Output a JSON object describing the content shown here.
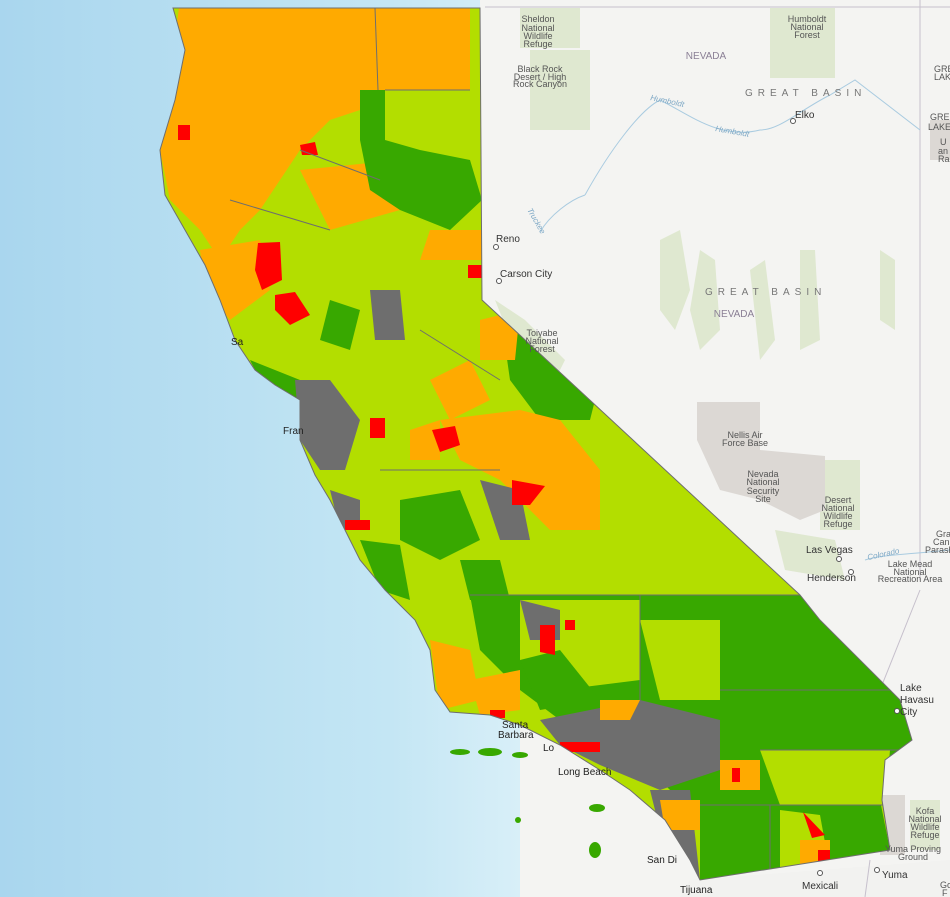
{
  "map": {
    "colors": {
      "ocean": "#b9e0f2",
      "land": "#f4f4f2",
      "light_green": "#b3de00",
      "dark_green": "#38a800",
      "orange": "#ffaa00",
      "red": "#ff0000",
      "gray": "#6e6e6e",
      "protected_green": "#dfe8d0",
      "military_gray": "#dcd8d4"
    },
    "labels": {
      "sheldon": [
        "Sheldon",
        "National",
        "Wildlife",
        "Refuge"
      ],
      "humboldt_forest": [
        "Humboldt",
        "National",
        "Forest"
      ],
      "black_rock": [
        "Black Rock",
        "Desert / High",
        "Rock Canyon"
      ],
      "nevada_1": "NEVADA",
      "nevada_2": "NEVADA",
      "great_basin_1": "GREAT BASIN",
      "great_basin_2": "GREAT BASIN",
      "humboldt_river_1": "Humboldt",
      "humboldt_river_2": "Humboldt",
      "truckee_river": "Truckee",
      "elko": "Elko",
      "reno": "Reno",
      "carson_city": "Carson City",
      "toiyabe": [
        "Toiyabe",
        "National",
        "Forest"
      ],
      "nellis": [
        "Nellis Air",
        "Force Base"
      ],
      "nnss": [
        "Nevada",
        "National",
        "Security",
        "Site"
      ],
      "desert_refuge": [
        "Desert",
        "National",
        "Wildlife",
        "Refuge"
      ],
      "las_vegas": "Las Vegas",
      "henderson": "Henderson",
      "colorado_river": "Colorado",
      "lake_mead": [
        "Lake Mead",
        "National",
        "Recreation Area"
      ],
      "lake_havasu": [
        "Lake",
        "Havasu",
        "City"
      ],
      "kofa": [
        "Kofa",
        "National",
        "Wildlife",
        "Refuge"
      ],
      "yuma_proving": [
        "Yuma Proving",
        "Ground"
      ],
      "yuma": "Yuma",
      "mexicali": "Mexicali",
      "tijuana": "Tijuana",
      "san_diego": "San Di",
      "long_beach": "Long Beach",
      "los_angeles": "Lo",
      "santa_barbara": [
        "Santa",
        "Barbara"
      ],
      "san_francisco": "Fran",
      "sacramento": "Sa",
      "edge_1": [
        "GRE",
        "LAKE"
      ],
      "edge_2": [
        "GRE",
        "LAKE"
      ],
      "edge_3": [
        "U",
        "an",
        "Ra"
      ],
      "edge_4": [
        "Gra",
        "Can",
        "Parash"
      ],
      "edge_5": [
        "Go",
        "F"
      ]
    }
  }
}
